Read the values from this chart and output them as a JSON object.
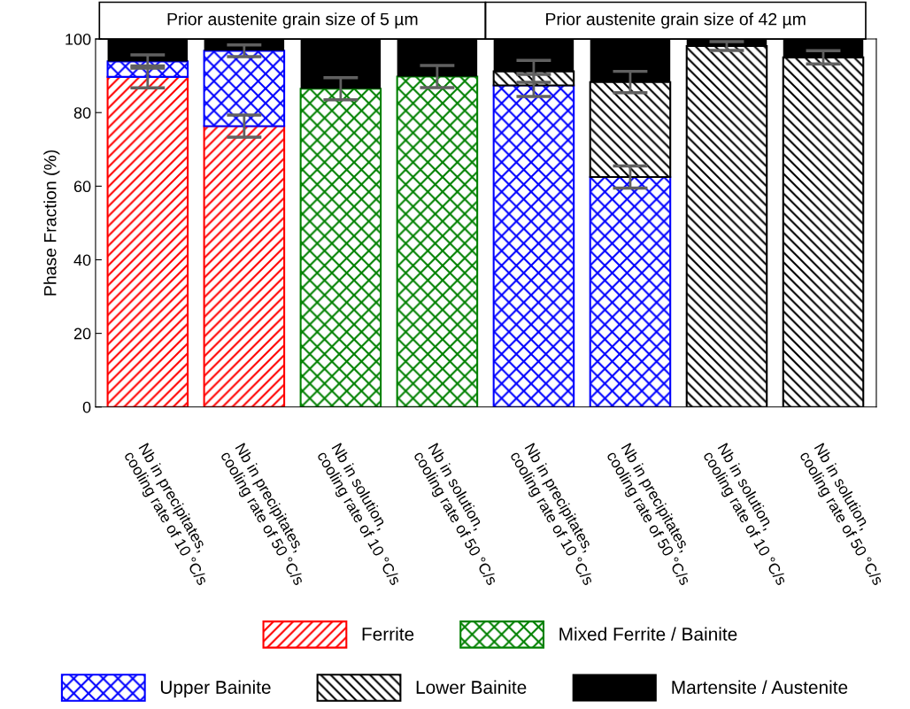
{
  "chart_data": {
    "type": "bar",
    "stacked": true,
    "ylabel": "Phase Fraction (%)",
    "categories": [
      "Nb in precipitates,\ncooling rate of 10 °C/s",
      "Nb in precipitates,\ncooling rate of 50 °C/s",
      "Nb in solution,\ncooling rate of 10 °C/s",
      "Nb in solution,\ncooling rate of 50 °C/s",
      "Nb in precipitates,\ncooling rate of 10 °C/s",
      "Nb in precipitates,\ncooling rate of 50 °C/s",
      "Nb in solution,\ncooling rate of 10 °C/s",
      "Nb in solution,\ncooling rate of 50 °C/s"
    ],
    "series": [
      {
        "name": "Ferrite",
        "color": "#ff0000",
        "values": [
          89.7,
          76.3,
          null,
          null,
          null,
          null,
          null,
          null
        ],
        "errors": [
          3,
          3,
          null,
          null,
          null,
          null,
          null,
          null
        ]
      },
      {
        "name": "Mixed Ferrite / Bainite",
        "color": "#008000",
        "values": [
          null,
          null,
          86.5,
          89.8,
          null,
          null,
          null,
          null
        ],
        "errors": [
          null,
          null,
          3,
          3,
          null,
          null,
          null,
          null
        ]
      },
      {
        "name": "Upper Bainite",
        "color": "#0000ff",
        "values": [
          4.2,
          20.5,
          null,
          null,
          87.4,
          62.5,
          null,
          null
        ],
        "errors": [
          1.8,
          1.6,
          null,
          null,
          3,
          3,
          null,
          null
        ]
      },
      {
        "name": "Lower Bainite",
        "color": "#000000",
        "values": [
          null,
          null,
          null,
          null,
          3.8,
          25.8,
          98.1,
          95.0
        ],
        "errors": [
          null,
          null,
          null,
          null,
          3,
          2.9,
          1.2,
          1.8
        ]
      },
      {
        "name": "Martensite / Austenite",
        "color": "#000000",
        "values": [
          6.1,
          3.2,
          13.5,
          10.2,
          8.8,
          11.7,
          1.9,
          5.0
        ]
      }
    ],
    "ylim": [
      0,
      100
    ],
    "yticks": [
      0,
      20,
      40,
      60,
      80,
      100
    ],
    "grid": false,
    "legend": "bottom",
    "annotations": [
      "Prior austenite grain size of 5 µm",
      "Prior austenite grain size of 42 µm"
    ]
  }
}
